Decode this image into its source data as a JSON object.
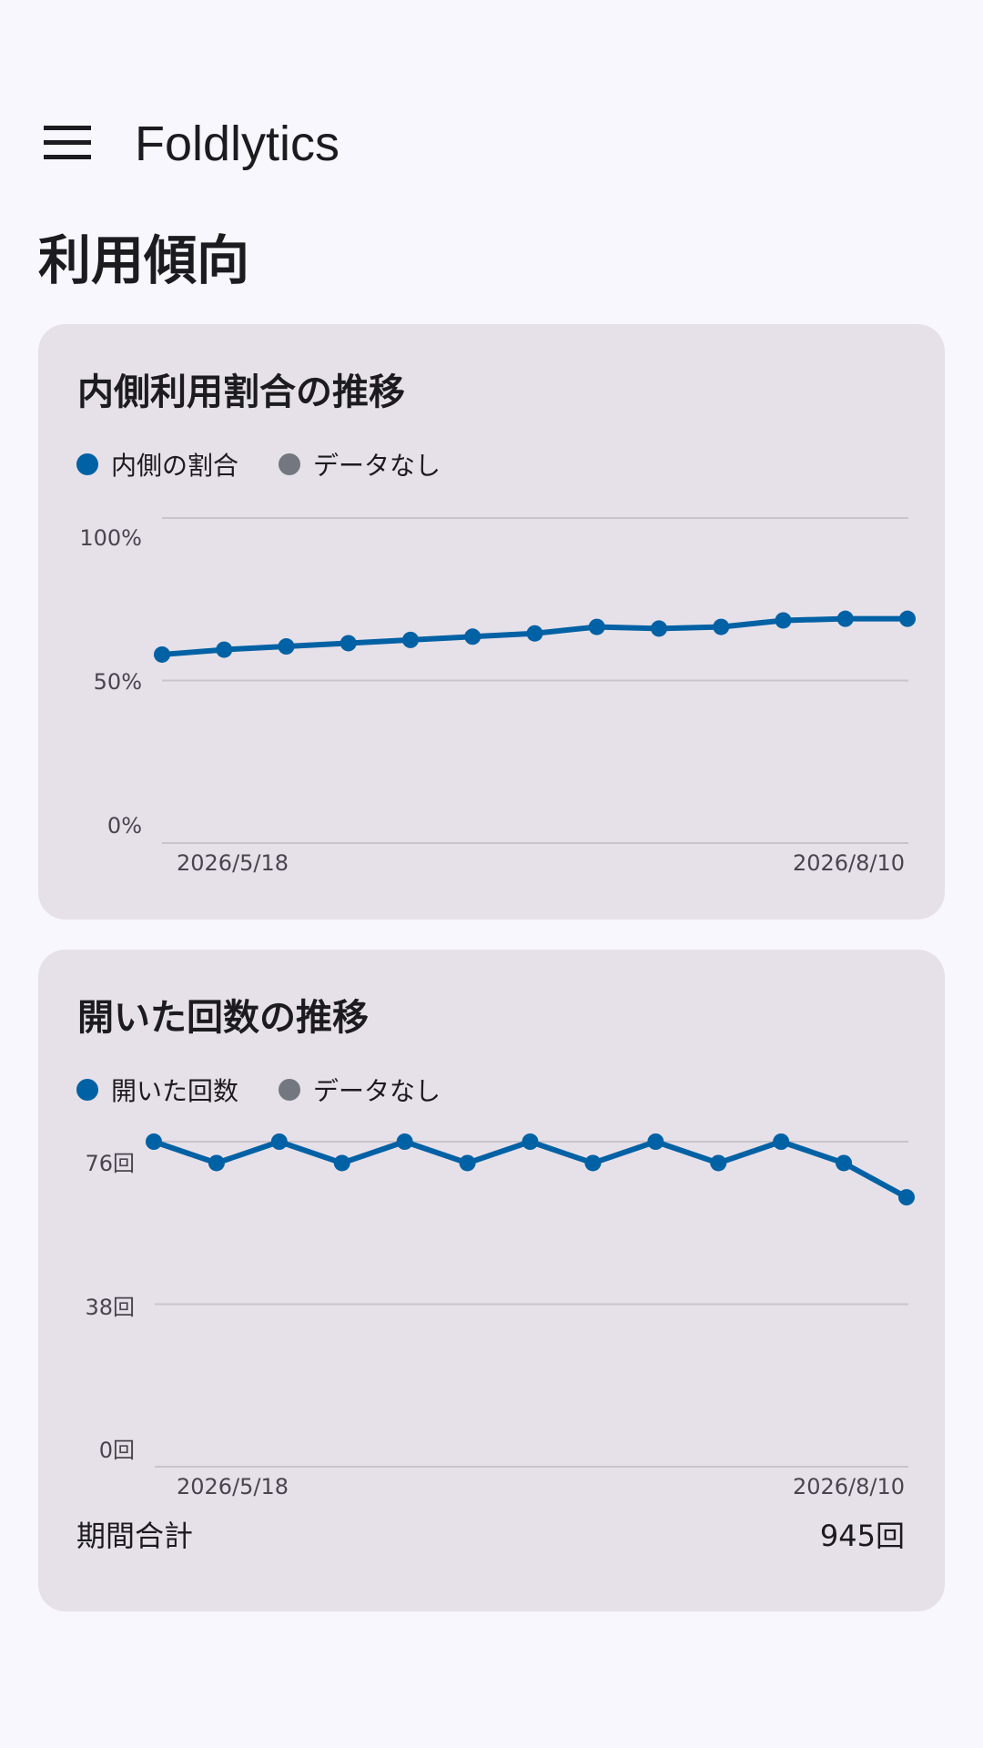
{
  "app": {
    "title": "Foldlytics",
    "menu_icon": "hamburger-menu-icon"
  },
  "page": {
    "title": "利用傾向"
  },
  "colors": {
    "series": "#0061a4",
    "no_data": "#73777f",
    "card": "#e6e0e9",
    "background": "#f8f7fe"
  },
  "cards": [
    {
      "title": "内側利用割合の推移",
      "legend": [
        {
          "label": "内側の割合",
          "color": "#0061a4"
        },
        {
          "label": "データなし",
          "color": "#73777f"
        }
      ]
    },
    {
      "title": "開いた回数の推移",
      "legend": [
        {
          "label": "開いた回数",
          "color": "#0061a4"
        },
        {
          "label": "データなし",
          "color": "#73777f"
        }
      ],
      "summary": {
        "label": "期間合計",
        "value": "945回"
      }
    }
  ],
  "chart_data": [
    {
      "type": "line",
      "title": "内側利用割合の推移",
      "x_labels_shown": [
        "2026/5/18",
        "2026/8/10"
      ],
      "y_ticks": [
        "100%",
        "50%",
        "0%"
      ],
      "ylim": [
        0,
        100
      ],
      "grid": true,
      "legend_position": "top-left",
      "series": [
        {
          "name": "内側の割合",
          "values": [
            58,
            59.5,
            60.5,
            61.5,
            62.5,
            63.5,
            64.5,
            66.5,
            66,
            66.5,
            68.5,
            69,
            69
          ]
        }
      ]
    },
    {
      "type": "line",
      "title": "開いた回数の推移",
      "x_labels_shown": [
        "2026/5/18",
        "2026/8/10"
      ],
      "y_ticks": [
        "76回",
        "38回",
        "0回"
      ],
      "ylim": [
        0,
        76
      ],
      "grid": true,
      "legend_position": "top-left",
      "series": [
        {
          "name": "開いた回数",
          "values": [
            76,
            71,
            76,
            71,
            76,
            71,
            76,
            71,
            76,
            71,
            76,
            71,
            63
          ]
        }
      ]
    }
  ]
}
